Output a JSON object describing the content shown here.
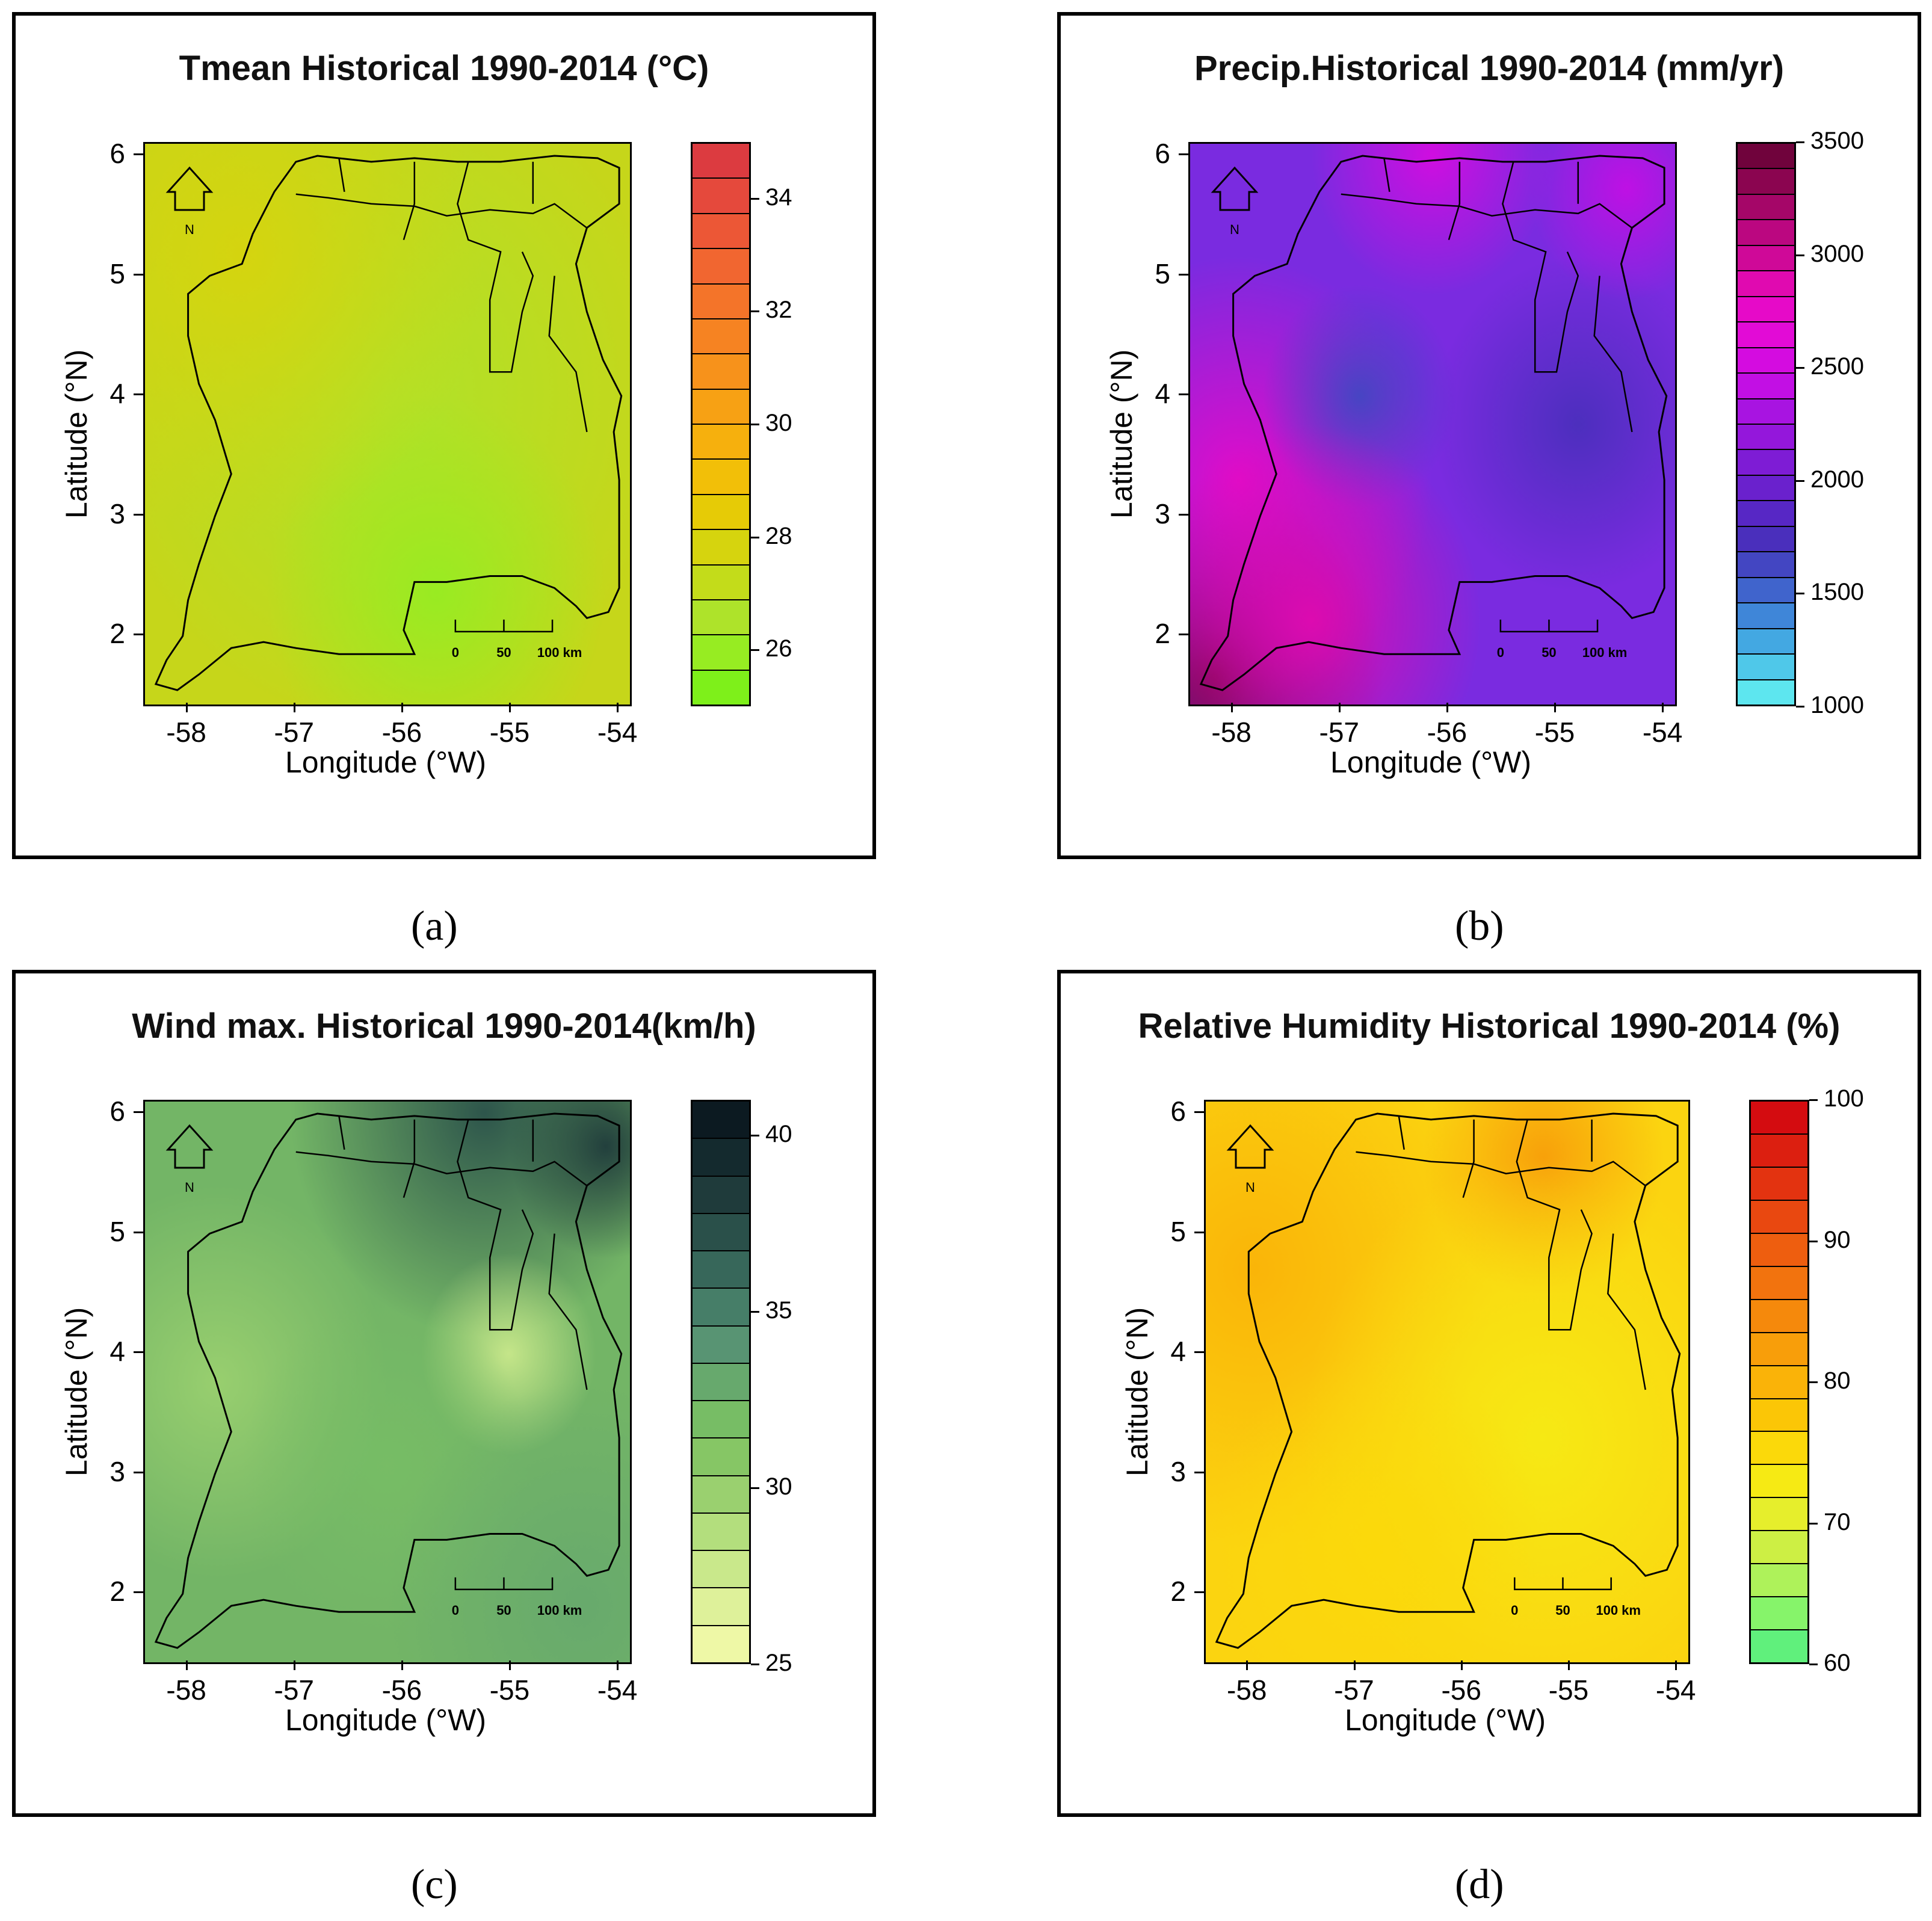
{
  "panels": [
    {
      "caption": "(a)",
      "title": "Tmean Historical 1990-2014      (°C)",
      "base_color": "#c6d61a",
      "legend": {
        "bands": [
          "#7ef01a",
          "#97ec22",
          "#aee32a",
          "#c3dc1a",
          "#d6d40e",
          "#e6cb06",
          "#f2bf08",
          "#f6b00d",
          "#f7a114",
          "#f7921b",
          "#f68322",
          "#f47429",
          "#f16630",
          "#ec5736",
          "#e5493c",
          "#dc3b40"
        ],
        "ticks": [
          "26",
          "28",
          "30",
          "32",
          "34"
        ],
        "tick_values": [
          26,
          28,
          30,
          32,
          34
        ],
        "min": 25,
        "max": 35
      }
    },
    {
      "caption": "(b)",
      "title": "Precip.Historical 1990-2014  (mm/yr)",
      "base_color": "#7a2be0",
      "legend": {
        "bands": [
          "#5de6ef",
          "#4fc8e9",
          "#43a8e2",
          "#3f86d8",
          "#4064cc",
          "#4346c2",
          "#4a2fbc",
          "#5727c5",
          "#6a21cd",
          "#7e1cd5",
          "#9417db",
          "#a814e1",
          "#c20fe4",
          "#d40ce0",
          "#e20bd6",
          "#e60ac8",
          "#e00ab0",
          "#cf0998",
          "#bb0780",
          "#a50668",
          "#8b0550",
          "#70033c"
        ],
        "ticks": [
          "1000",
          "1500",
          "2000",
          "2500",
          "3000",
          "3500"
        ],
        "tick_values": [
          1000,
          1500,
          2000,
          2500,
          3000,
          3500
        ],
        "min": 1000,
        "max": 3500
      }
    },
    {
      "caption": "(c)",
      "title": "Wind max. Historical 1990-2014(km/h)",
      "base_color": "#73b566",
      "legend": {
        "bands": [
          "#eef8a6",
          "#def19a",
          "#c9e88b",
          "#b3de7d",
          "#9ad06f",
          "#86c665",
          "#77bd65",
          "#67a96d",
          "#589473",
          "#467e68",
          "#37675a",
          "#2a504a",
          "#1f3b3b",
          "#142a2e",
          "#0c1a21"
        ],
        "ticks": [
          "25",
          "30",
          "35",
          "40"
        ],
        "tick_values": [
          25,
          30,
          35,
          40
        ],
        "min": 25,
        "max": 41
      }
    },
    {
      "caption": "(d)",
      "title": "Relative Humidity Historical 1990-2014    (%)",
      "base_color": "#fbd410",
      "legend": {
        "bands": [
          "#60f07c",
          "#86f46a",
          "#aef25a",
          "#cdef44",
          "#e6ee2c",
          "#f6ea14",
          "#fbd90a",
          "#fbc606",
          "#fab308",
          "#f89e0a",
          "#f5890c",
          "#f2730e",
          "#ee5e0f",
          "#e94810",
          "#e33310",
          "#dc1f10",
          "#d40c10"
        ],
        "ticks": [
          "60",
          "70",
          "80",
          "90",
          "100"
        ],
        "tick_values": [
          60,
          70,
          80,
          90,
          100
        ],
        "min": 60,
        "max": 100
      }
    }
  ],
  "axes": {
    "xlabel": "Longitude (°W)",
    "ylabel": "Latitude (°N)",
    "xticks": [
      "-58",
      "-57",
      "-56",
      "-55",
      "-54"
    ],
    "yticks": [
      "2",
      "3",
      "4",
      "5",
      "6"
    ]
  },
  "north_label": "N",
  "scalebar_labels": [
    "0",
    "50",
    "100 km"
  ]
}
